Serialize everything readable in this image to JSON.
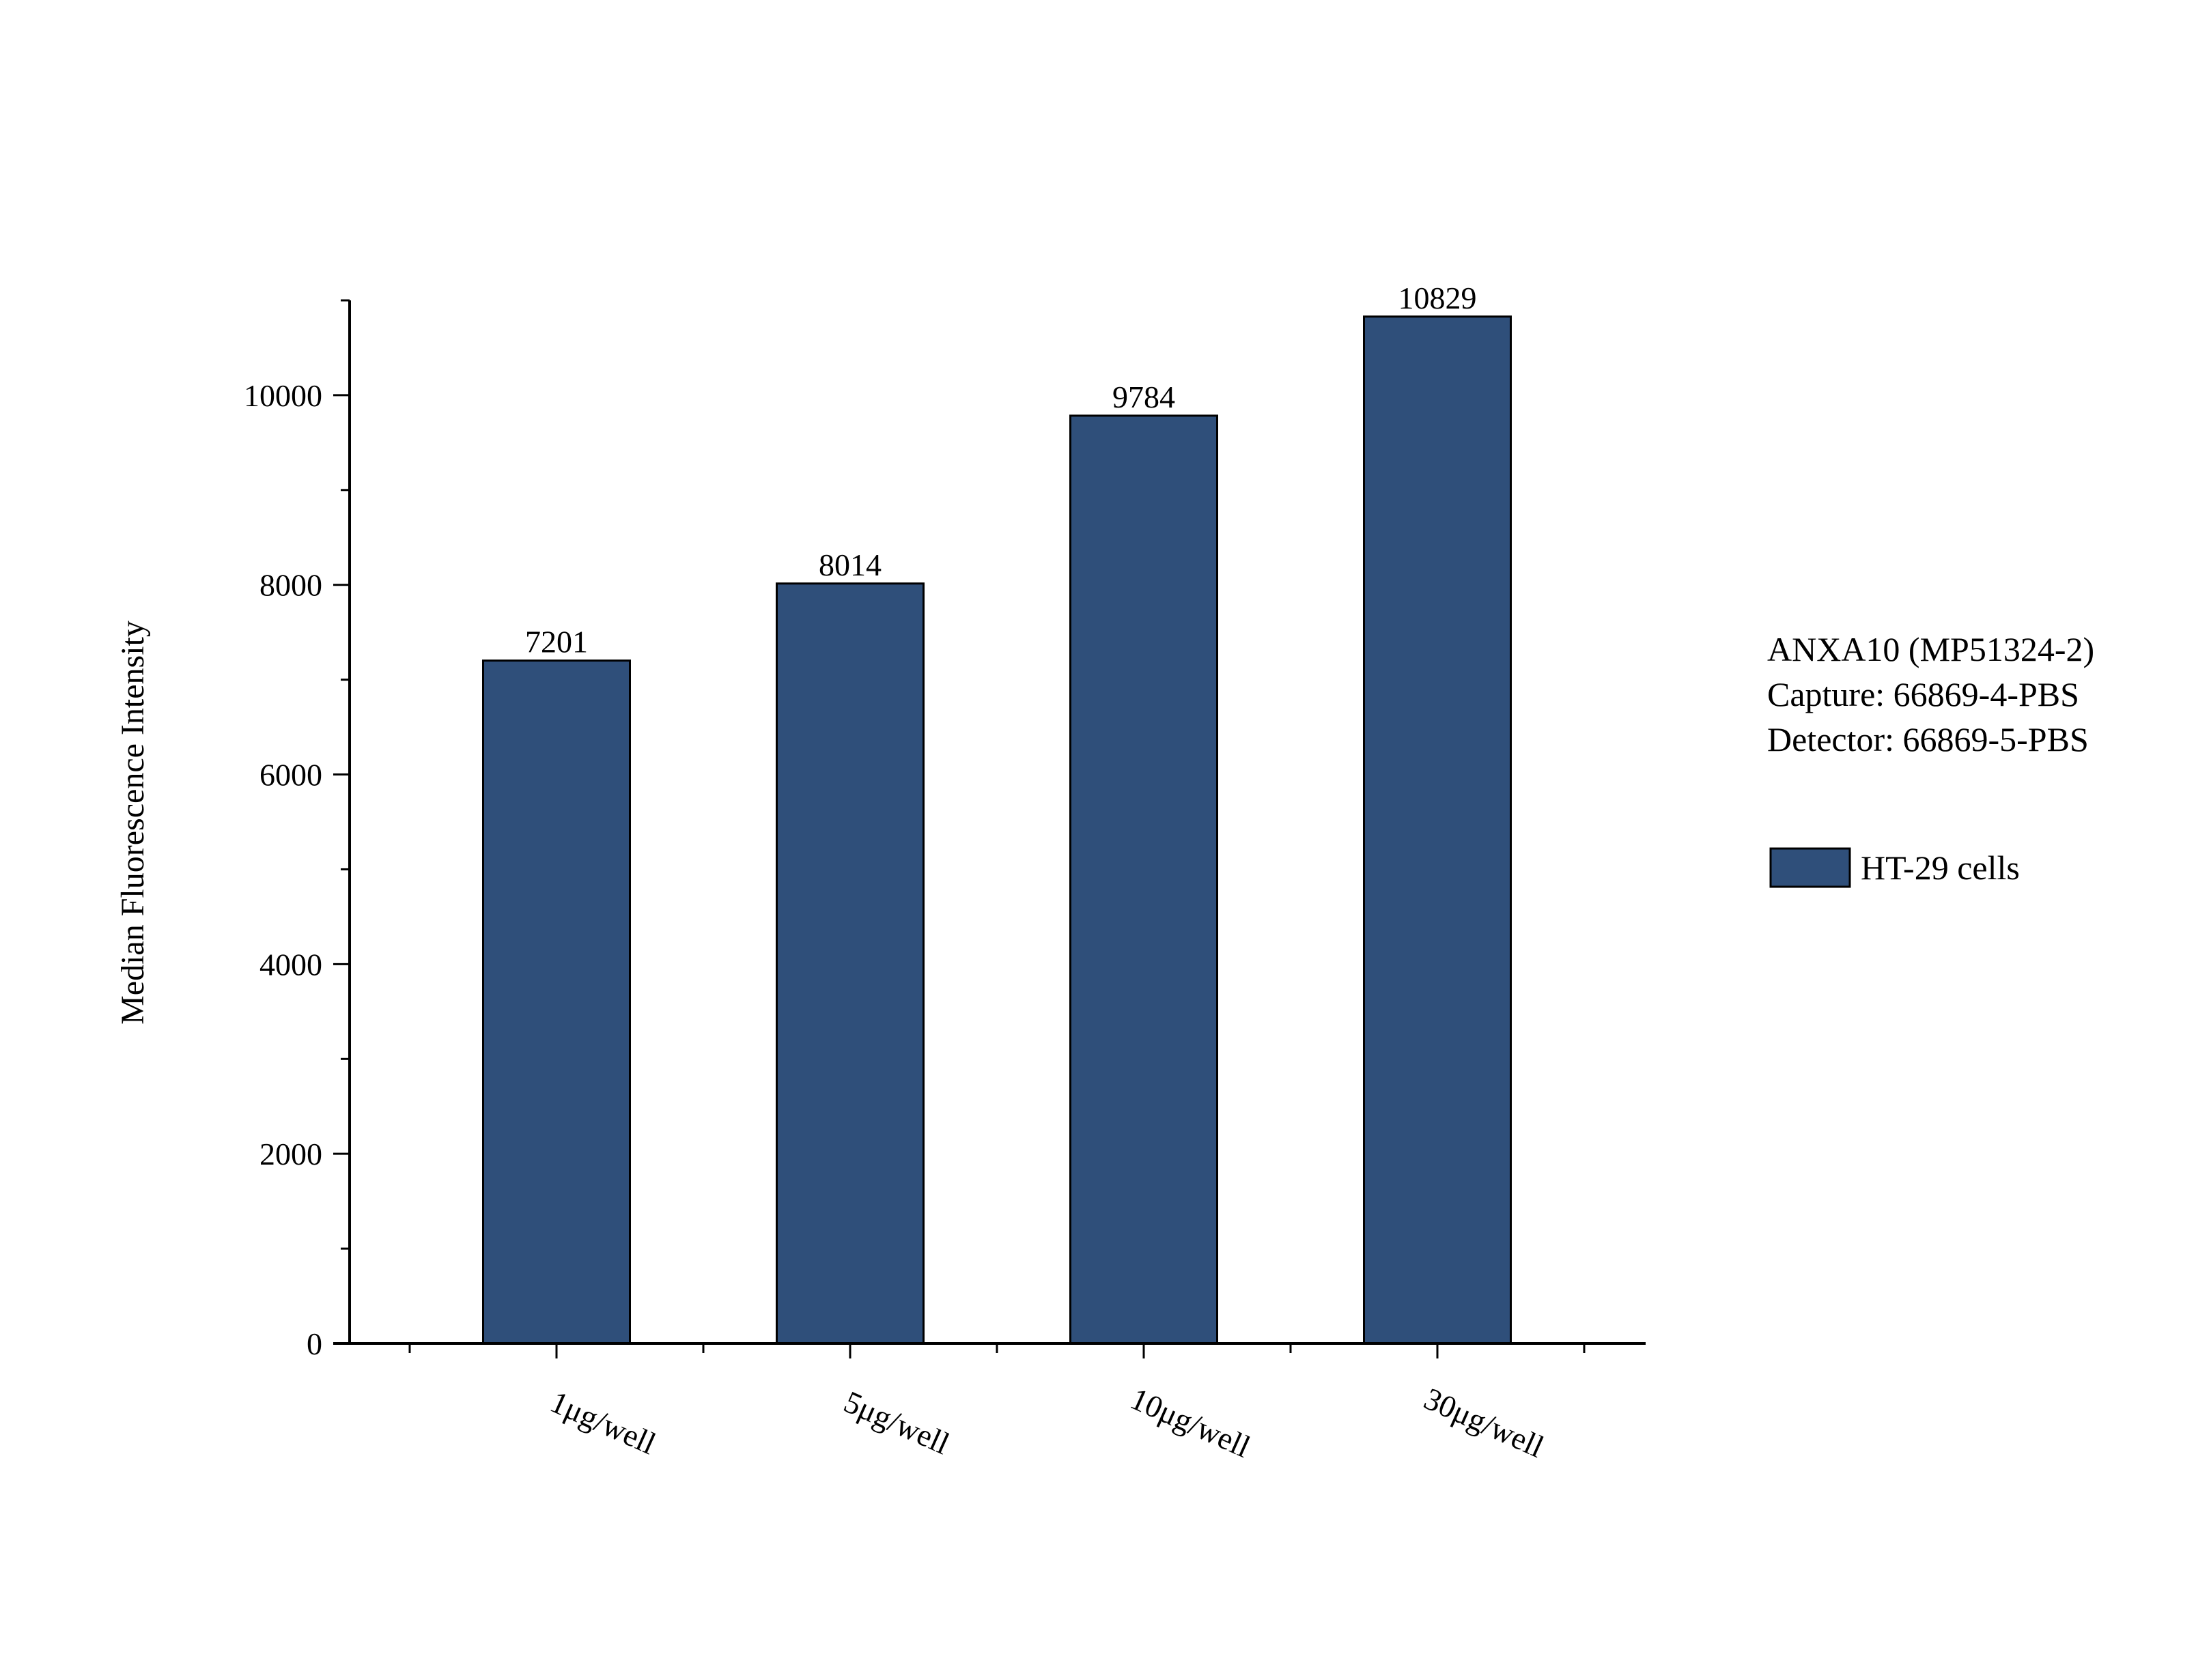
{
  "chart_data": {
    "type": "bar",
    "title": "",
    "xlabel": "",
    "ylabel": "Median Fluorescence Intensity",
    "categories": [
      "1μg/well",
      "5μg/well",
      "10μg/well",
      "30μg/well"
    ],
    "series": [
      {
        "name": "HT-29 cells",
        "values": [
          7201,
          8014,
          9784,
          10829
        ],
        "color": "#2f4f7a"
      }
    ],
    "data_labels": [
      "7201",
      "8014",
      "9784",
      "10829"
    ],
    "ylim": [
      0,
      11000
    ],
    "yticks": [
      0,
      2000,
      4000,
      6000,
      8000,
      10000
    ],
    "yticks_minor_step": 1000,
    "grid": false,
    "legend_position": "right",
    "annotation_lines": [
      "ANXA10 (MP51324-2)",
      "Capture: 66869-4-PBS",
      "Detector: 66869-5-PBS"
    ]
  }
}
